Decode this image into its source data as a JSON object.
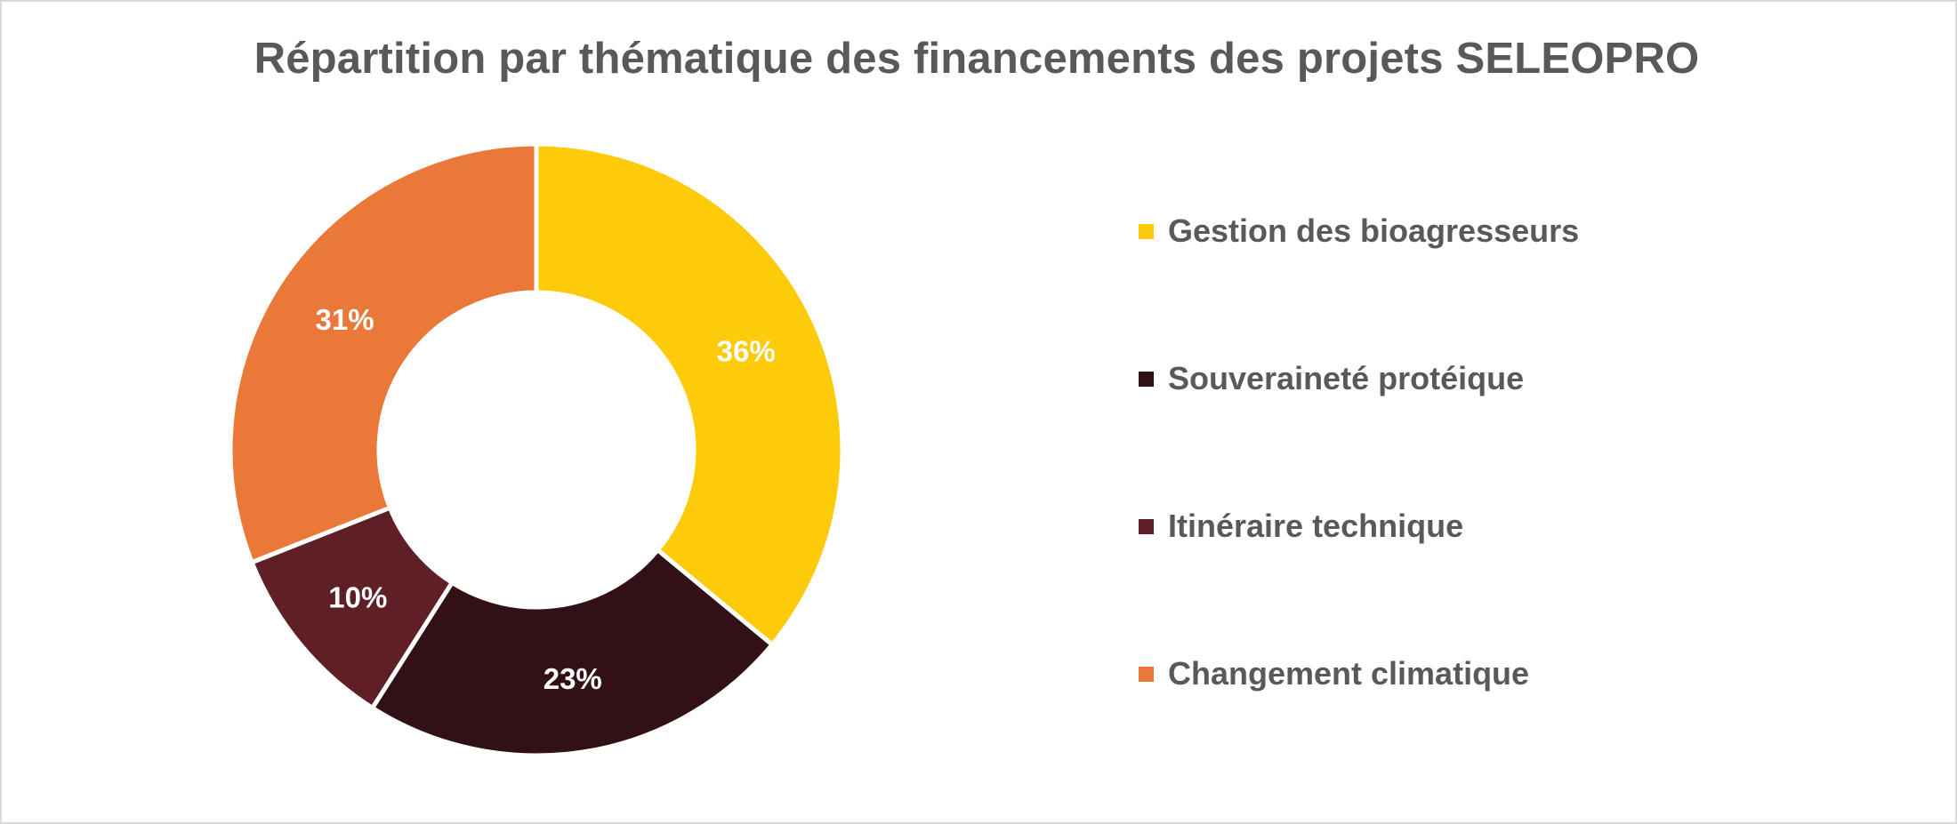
{
  "colors": {
    "Gestion des bioagresseurs": "#FDCB0A",
    "Souveraineté protéique": "#311116",
    "Itinéraire technique": "#5E1F26",
    "Changement climatique": "#EA7839",
    "label_text": "#FFFFFF",
    "title_text": "#595959",
    "border": "#D9D9D9"
  },
  "chart_data": {
    "type": "pie",
    "variant": "donut",
    "title": "Répartition par thématique des financements des projets SELEOPRO",
    "categories": [
      "Gestion des bioagresseurs",
      "Souveraineté protéique",
      "Itinéraire technique",
      "Changement climatique"
    ],
    "values": [
      36,
      23,
      10,
      31
    ],
    "data_labels": [
      "36%",
      "23%",
      "10%",
      "31%"
    ],
    "legend_position": "right"
  }
}
